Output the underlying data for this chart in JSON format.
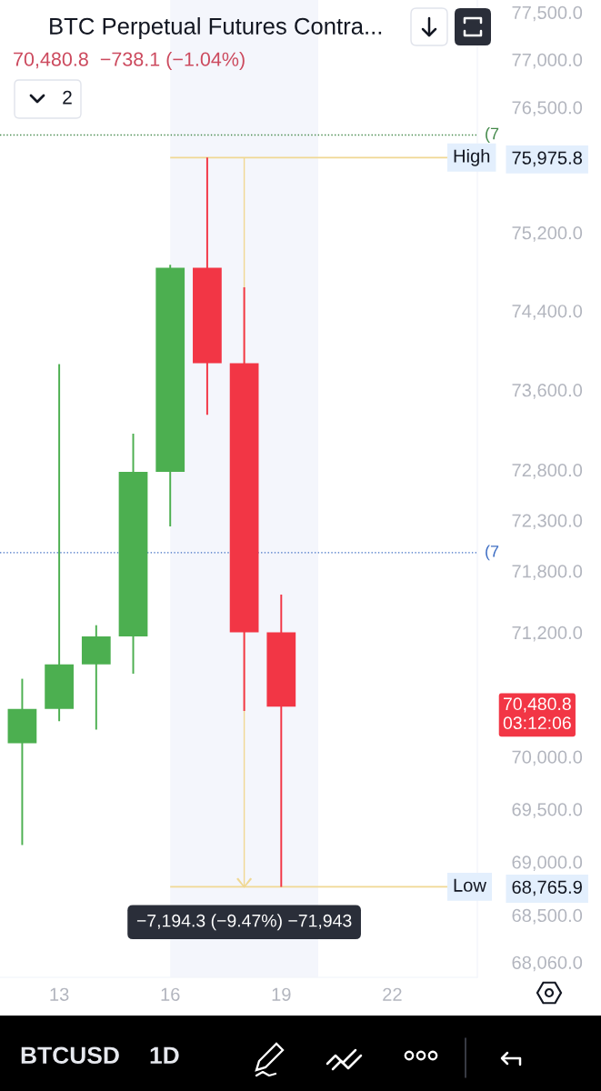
{
  "chart_data": {
    "type": "candlestick",
    "title": "BTC Perpetual Futures Contra...",
    "subtitle": "70,480.8  −738.1 (−1.04%)",
    "x": [
      12,
      13,
      14,
      15,
      16,
      17,
      18,
      19
    ],
    "ohlc": [
      [
        70130,
        70750,
        69160,
        70460
      ],
      [
        70460,
        73860,
        70340,
        70890
      ],
      [
        70890,
        71270,
        70260,
        71160
      ],
      [
        71160,
        73160,
        70800,
        72780
      ],
      [
        72780,
        74870,
        72240,
        74840
      ],
      [
        74840,
        75975.8,
        73350,
        73870
      ],
      [
        73870,
        74640,
        70440,
        71200
      ],
      [
        71200,
        71570,
        68765.9,
        70480.8
      ]
    ],
    "colors": [
      "#4caf50",
      "#4caf50",
      "#4caf50",
      "#4caf50",
      "#4caf50",
      "#f23645",
      "#f23645",
      "#f23645"
    ],
    "xlim": [
      11.4,
      24.3
    ],
    "xticks": [
      13,
      16,
      19,
      22
    ],
    "log": true,
    "ylim": [
      67920,
      77630
    ],
    "yticks": [
      {
        "value": 77500,
        "label": "77,500.0"
      },
      {
        "value": 77000,
        "label": "77,000.0"
      },
      {
        "value": 76500,
        "label": "76,500.0"
      },
      {
        "value": 75975.8,
        "label": "75,975.8"
      },
      {
        "value": 75200,
        "label": "75,200.0"
      },
      {
        "value": 74400,
        "label": "74,400.0"
      },
      {
        "value": 73600,
        "label": "73,600.0"
      },
      {
        "value": 72800,
        "label": "72,800.0"
      },
      {
        "value": 72300,
        "label": "72,300.0"
      },
      {
        "value": 71800,
        "label": "71,800.0"
      },
      {
        "value": 71200,
        "label": "71,200.0"
      },
      {
        "value": 70000,
        "label": "70,000.0"
      },
      {
        "value": 69500,
        "label": "69,500.0"
      },
      {
        "value": 69000,
        "label": "69,000.0"
      },
      {
        "value": 68765.9,
        "label": "68,765.9"
      },
      {
        "value": 68500,
        "label": "68,500.0"
      },
      {
        "value": 68060,
        "label": "68,060.0"
      }
    ],
    "ref_lines": [
      {
        "axis": "y",
        "value": 76210,
        "color": "#43894a",
        "line_style": "dotted"
      },
      {
        "axis": "y",
        "value": 71980,
        "color": "#3f6fc4",
        "line_style": "dotted"
      },
      {
        "axis": "y",
        "value": 75975.8,
        "label": "High",
        "color": "#f0d893",
        "line_style": "solid"
      },
      {
        "axis": "y",
        "value": 68765.9,
        "label": "Low",
        "color": "#f0d893",
        "line_style": "solid"
      }
    ],
    "bands": [
      {
        "axis": "x",
        "from": 16,
        "to": 20,
        "color": "#f4f6fc"
      }
    ],
    "annotations": [
      {
        "text": "−7,194.3 (−9.47%) −71,943",
        "x": 18,
        "y": 68765.9
      },
      "70,480.8\n03:12:06",
      "(7",
      "(7",
      "2",
      "BTCUSD",
      "1D"
    ]
  }
}
